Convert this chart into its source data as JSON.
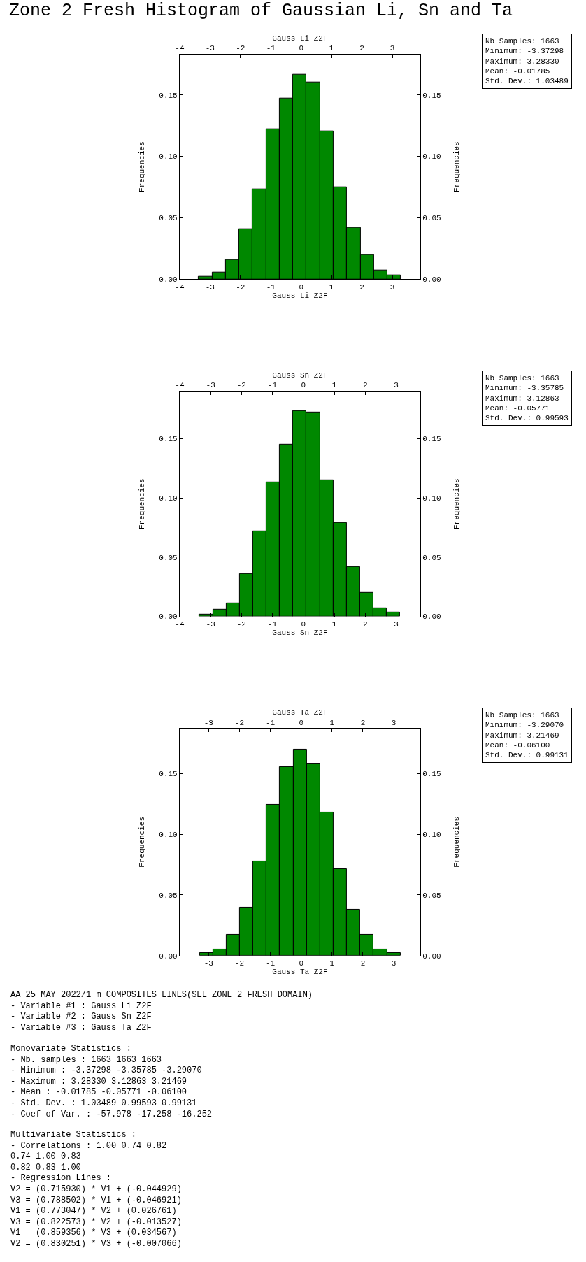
{
  "chart_data": [
    {
      "type": "histogram",
      "title": "Zone 2 Fresh Histogram of Gaussian Li, Sn and Ta",
      "xlabel": "Gauss Li Z2F",
      "x2label": "Gauss Li Z2F",
      "ylabel": "Frequencies",
      "y2label": "Frequencies",
      "color": "#008800",
      "bins": [
        -3.373,
        -2.929,
        -2.486,
        -2.042,
        -1.598,
        -1.154,
        -0.711,
        -0.267,
        0.177,
        0.62,
        1.064,
        1.508,
        1.951,
        2.395,
        2.839,
        3.283
      ],
      "values": [
        0.002,
        0.0056,
        0.016,
        0.041,
        0.073,
        0.122,
        0.147,
        0.1665,
        0.16,
        0.1205,
        0.075,
        0.042,
        0.0195,
        0.0072,
        0.003
      ],
      "xlim": [
        -4,
        3.92
      ],
      "xticks": [
        -4,
        -3,
        -2,
        -1,
        0,
        1,
        2,
        3
      ],
      "x2lim": [
        -4,
        3.92
      ],
      "x2ticks": [
        -4,
        -3,
        -2,
        -1,
        0,
        1,
        2,
        3
      ],
      "ylim": [
        0,
        0.183
      ],
      "yticks": [
        {
          "value": 0,
          "label": "0.00"
        },
        {
          "value": 0.05,
          "label": "0.05"
        },
        {
          "value": 0.1,
          "label": "0.10"
        },
        {
          "value": 0.15,
          "label": "0.15"
        }
      ],
      "y2lim": [
        0,
        0.183
      ],
      "y2ticks": [
        {
          "value": 0,
          "label": "0.00"
        },
        {
          "value": 0.05,
          "label": "0.05"
        },
        {
          "value": 0.1,
          "label": "0.10"
        },
        {
          "value": 0.15,
          "label": "0.15"
        }
      ],
      "annotations": [
        "Nb Samples: 1663",
        "Minimum: -3.37298",
        "Maximum: 3.28330",
        "Mean: -0.01785",
        "Std. Dev.: 1.03489"
      ]
    },
    {
      "type": "histogram",
      "xlabel": "Gauss Sn Z2F",
      "x2label": "Gauss Sn Z2F",
      "ylabel": "Frequencies",
      "y2label": "Frequencies",
      "color": "#008800",
      "bins": [
        -3.358,
        -2.925,
        -2.493,
        -2.061,
        -1.628,
        -1.196,
        -0.763,
        -0.331,
        0.101,
        0.534,
        0.966,
        1.399,
        1.831,
        2.264,
        2.696,
        3.129
      ],
      "values": [
        0.0019,
        0.0056,
        0.011,
        0.036,
        0.072,
        0.1135,
        0.1454,
        0.1734,
        0.1724,
        0.1153,
        0.079,
        0.042,
        0.0197,
        0.0068,
        0.0035
      ],
      "xlim": [
        -4,
        3.78
      ],
      "xticks": [
        -4,
        -3,
        -2,
        -1,
        0,
        1,
        2,
        3
      ],
      "x2lim": [
        -4,
        3.78
      ],
      "x2ticks": [
        -4,
        -3,
        -2,
        -1,
        0,
        1,
        2,
        3
      ],
      "ylim": [
        0,
        0.19
      ],
      "yticks": [
        {
          "value": 0,
          "label": "0.00"
        },
        {
          "value": 0.05,
          "label": "0.05"
        },
        {
          "value": 0.1,
          "label": "0.10"
        },
        {
          "value": 0.15,
          "label": "0.15"
        }
      ],
      "y2lim": [
        0,
        0.19
      ],
      "y2ticks": [
        {
          "value": 0,
          "label": "0.00"
        },
        {
          "value": 0.05,
          "label": "0.05"
        },
        {
          "value": 0.1,
          "label": "0.10"
        },
        {
          "value": 0.15,
          "label": "0.15"
        }
      ],
      "annotations": [
        "Nb Samples: 1663",
        "Minimum: -3.35785",
        "Maximum: 3.12863",
        "Mean: -0.05771",
        "Std. Dev.: 0.99593"
      ]
    },
    {
      "type": "histogram",
      "xlabel": "Gauss Ta Z2F",
      "x2label": "Gauss Ta Z2F",
      "ylabel": "Frequencies",
      "y2label": "Frequencies",
      "color": "#008800",
      "bins": [
        -3.291,
        -2.857,
        -2.423,
        -1.99,
        -1.556,
        -1.122,
        -0.689,
        -0.255,
        0.179,
        0.613,
        1.046,
        1.48,
        1.914,
        2.347,
        2.781,
        3.215
      ],
      "values": [
        0.002,
        0.005,
        0.017,
        0.0397,
        0.0775,
        0.1243,
        0.1555,
        0.17,
        0.1575,
        0.118,
        0.0715,
        0.0377,
        0.017,
        0.005,
        0.002
      ],
      "xlim": [
        -3.94,
        3.86
      ],
      "xticks": [
        -3,
        -2,
        -1,
        0,
        1,
        2,
        3
      ],
      "x2lim": [
        -3.94,
        3.86
      ],
      "x2ticks": [
        -3,
        -2,
        -1,
        0,
        1,
        2,
        3
      ],
      "ylim": [
        0,
        0.187
      ],
      "yticks": [
        {
          "value": 0,
          "label": "0.00"
        },
        {
          "value": 0.05,
          "label": "0.05"
        },
        {
          "value": 0.1,
          "label": "0.10"
        },
        {
          "value": 0.15,
          "label": "0.15"
        }
      ],
      "y2lim": [
        0,
        0.187
      ],
      "y2ticks": [
        {
          "value": 0,
          "label": "0.00"
        },
        {
          "value": 0.05,
          "label": "0.05"
        },
        {
          "value": 0.1,
          "label": "0.10"
        },
        {
          "value": 0.15,
          "label": "0.15"
        }
      ],
      "annotations": [
        "Nb Samples: 1663",
        "Minimum: -3.29070",
        "Maximum: 3.21469",
        "Mean: -0.06100",
        "Std. Dev.: 0.99131"
      ]
    },
    {
      "type": "other",
      "annotations": [
        "AA 25 MAY 2022/1 m COMPOSITES LINES(SEL ZONE 2 FRESH DOMAIN)\n- Variable #1 : Gauss Li Z2F\n- Variable #2 : Gauss Sn Z2F\n- Variable #3 : Gauss Ta Z2F",
        "Monovariate Statistics :\n- Nb. samples : 1663 1663 1663\n- Minimum : -3.37298 -3.35785 -3.29070\n- Maximum : 3.28330 3.12863 3.21469\n- Mean : -0.01785 -0.05771 -0.06100\n- Std. Dev. : 1.03489 0.99593 0.99131\n- Coef of Var. : -57.978 -17.258 -16.252",
        "Multivariate Statistics :\n- Correlations : 1.00 0.74 0.82\n0.74 1.00 0.83\n0.82 0.83 1.00\n- Regression Lines :\nV2 = (0.715930) * V1 + (-0.044929)\nV3 = (0.788502) * V1 + (-0.046921)\nV1 = (0.773047) * V2 + (0.026761)\nV3 = (0.822573) * V2 + (-0.013527)\nV1 = (0.859356) * V3 + (0.034567)\nV2 = (0.830251) * V3 + (-0.007066)"
      ]
    }
  ]
}
